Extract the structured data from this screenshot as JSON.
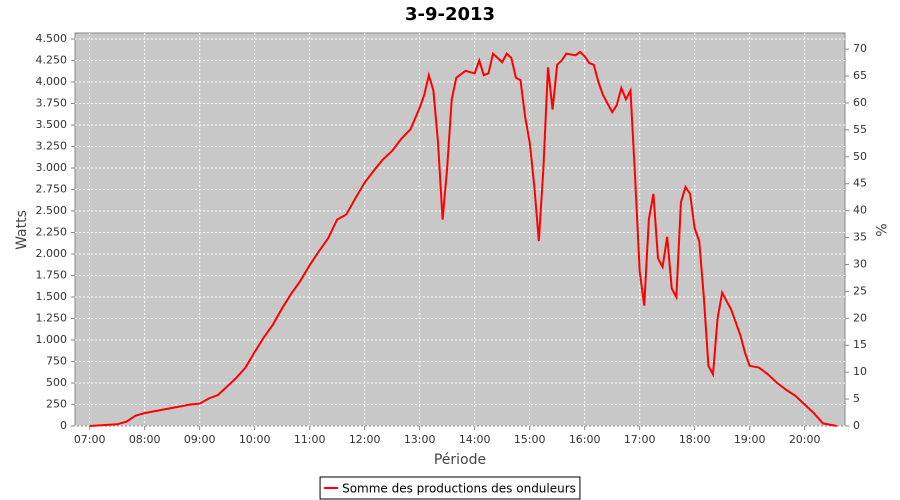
{
  "chart_data": {
    "type": "line",
    "title": "3-9-2013",
    "x_label": "Période",
    "y_label": "Watts",
    "y2_label": "%",
    "x": [
      "07:00",
      "07:30",
      "07:40",
      "07:50",
      "08:00",
      "08:20",
      "08:40",
      "08:50",
      "09:00",
      "09:10",
      "09:20",
      "09:30",
      "09:40",
      "09:50",
      "10:00",
      "10:10",
      "10:20",
      "10:30",
      "10:40",
      "10:50",
      "11:00",
      "11:10",
      "11:20",
      "11:30",
      "11:40",
      "11:50",
      "12:00",
      "12:10",
      "12:20",
      "12:30",
      "12:40",
      "12:50",
      "13:00",
      "13:05",
      "13:10",
      "13:15",
      "13:20",
      "13:25",
      "13:30",
      "13:35",
      "13:40",
      "13:50",
      "14:00",
      "14:05",
      "14:10",
      "14:15",
      "14:20",
      "14:30",
      "14:35",
      "14:40",
      "14:45",
      "14:50",
      "14:55",
      "15:00",
      "15:05",
      "15:10",
      "15:15",
      "15:20",
      "15:25",
      "15:30",
      "15:35",
      "15:40",
      "15:50",
      "15:55",
      "16:00",
      "16:05",
      "16:10",
      "16:15",
      "16:20",
      "16:30",
      "16:35",
      "16:40",
      "16:45",
      "16:50",
      "16:55",
      "17:00",
      "17:05",
      "17:10",
      "17:15",
      "17:20",
      "17:25",
      "17:30",
      "17:35",
      "17:40",
      "17:45",
      "17:50",
      "17:55",
      "18:00",
      "18:05",
      "18:10",
      "18:15",
      "18:20",
      "18:25",
      "18:30",
      "18:35",
      "18:40",
      "18:45",
      "18:50",
      "18:55",
      "19:00",
      "19:10",
      "19:20",
      "19:30",
      "19:40",
      "19:50",
      "20:00",
      "20:10",
      "20:20",
      "20:30",
      "20:35"
    ],
    "series": [
      {
        "name": "Somme des productions des onduleurs",
        "color": "#ff0000",
        "values": [
          0,
          20,
          50,
          120,
          150,
          190,
          230,
          250,
          260,
          320,
          360,
          460,
          560,
          680,
          860,
          1030,
          1180,
          1370,
          1540,
          1690,
          1870,
          2030,
          2180,
          2400,
          2460,
          2650,
          2830,
          2970,
          3100,
          3200,
          3340,
          3450,
          3700,
          3850,
          4080,
          3900,
          3300,
          2400,
          3000,
          3800,
          4050,
          4130,
          4100,
          4250,
          4080,
          4100,
          4330,
          4230,
          4330,
          4280,
          4050,
          4020,
          3600,
          3300,
          2800,
          2150,
          3000,
          4170,
          3680,
          4200,
          4250,
          4330,
          4310,
          4350,
          4300,
          4220,
          4200,
          4000,
          3850,
          3650,
          3730,
          3930,
          3800,
          3900,
          2900,
          1800,
          1400,
          2400,
          2700,
          1950,
          1850,
          2200,
          1600,
          1500,
          2600,
          2780,
          2700,
          2300,
          2150,
          1500,
          700,
          600,
          1250,
          1550,
          1450,
          1350,
          1200,
          1050,
          850,
          700,
          680,
          600,
          500,
          420,
          350,
          250,
          150,
          30,
          10,
          0
        ]
      }
    ],
    "xlim": [
      "06:44",
      "20:44"
    ],
    "xticks": [
      "07:00",
      "08:00",
      "09:00",
      "10:00",
      "11:00",
      "12:00",
      "13:00",
      "14:00",
      "15:00",
      "16:00",
      "17:00",
      "18:00",
      "19:00",
      "20:00"
    ],
    "ylim": [
      0,
      4570
    ],
    "yticks": [
      0,
      250,
      500,
      750,
      {
        "value": 1000,
        "label": "1.000"
      },
      {
        "value": 1250,
        "label": "1.250"
      },
      {
        "value": 1500,
        "label": "1.500"
      },
      {
        "value": 1750,
        "label": "1.750"
      },
      {
        "value": 2000,
        "label": "2.000"
      },
      {
        "value": 2250,
        "label": "2.250"
      },
      {
        "value": 2500,
        "label": "2.500"
      },
      {
        "value": 2750,
        "label": "2.750"
      },
      {
        "value": 3000,
        "label": "3.000"
      },
      {
        "value": 3250,
        "label": "3.250"
      },
      {
        "value": 3500,
        "label": "3.500"
      },
      {
        "value": 3750,
        "label": "3.750"
      },
      {
        "value": 4000,
        "label": "4.000"
      },
      {
        "value": 4250,
        "label": "4.250"
      },
      {
        "value": 4500,
        "label": "4.500"
      }
    ],
    "y2lim": [
      0,
      73
    ],
    "y2ticks": [
      0,
      5,
      10,
      15,
      20,
      25,
      30,
      35,
      40,
      45,
      50,
      55,
      60,
      65,
      70
    ],
    "grid": true,
    "legend": "bottom",
    "plot_background": "#c8c8c8"
  }
}
